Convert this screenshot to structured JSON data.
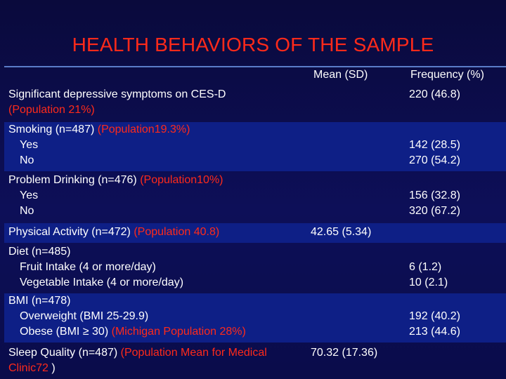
{
  "title": "HEALTH BEHAVIORS OF THE SAMPLE",
  "columns": {
    "mean": "Mean (SD)",
    "frequency": "Frequency (%)"
  },
  "rows": [
    {
      "label": "Significant depressive symptoms on CES-D",
      "note": "(Population 21%)",
      "freq": "220 (46.8)"
    },
    {
      "label": "Smoking (n=487)",
      "note": "(Population19.3%)",
      "sub": [
        "Yes",
        "No"
      ],
      "freq": [
        "142 (28.5)",
        "270 (54.2)"
      ]
    },
    {
      "label": "Problem Drinking (n=476)",
      "note": "(Population10%)",
      "sub": [
        "Yes",
        "No"
      ],
      "freq": [
        "156 (32.8)",
        "320 (67.2)"
      ]
    },
    {
      "label": "Physical Activity (n=472)",
      "note": "(Population 40.8)",
      "mean": "42.65 (5.34)"
    },
    {
      "label": "Diet (n=485)",
      "sub": [
        "Fruit Intake (4 or more/day)",
        "Vegetable Intake (4 or more/day)"
      ],
      "freq": [
        "6 (1.2)",
        "10 (2.1)"
      ]
    },
    {
      "label": "BMI (n=478)",
      "sub": [
        "Overweight (BMI 25-29.9)",
        "Obese (BMI ≥ 30)"
      ],
      "sub_note": "(Michigan Population 28%)",
      "freq": [
        "192 (40.2)",
        "213 (44.6)"
      ]
    },
    {
      "label": "Sleep Quality (n=487)",
      "note": "(Population Mean for Medical",
      "note2": "Clinic72",
      "close": ")",
      "mean": "70.32 (17.36)"
    }
  ]
}
